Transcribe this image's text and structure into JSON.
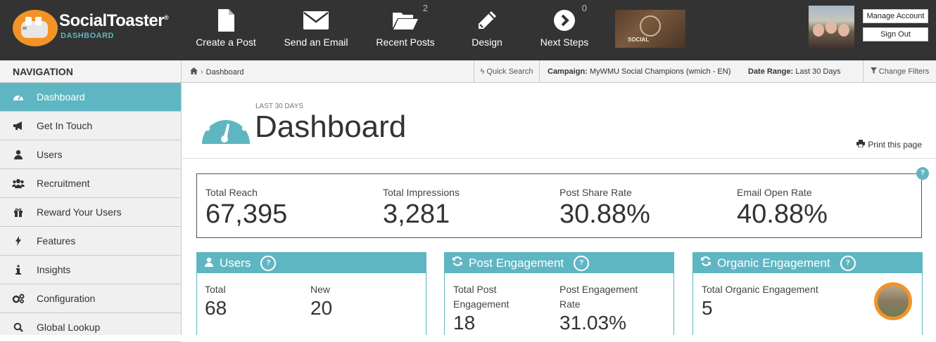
{
  "brand": {
    "name": "SocialToaster",
    "reg": "®",
    "sub": "DASHBOARD"
  },
  "topnav": [
    {
      "label": "Create a Post",
      "icon": "file-icon"
    },
    {
      "label": "Send an Email",
      "icon": "envelope-icon"
    },
    {
      "label": "Recent Posts",
      "icon": "folder-open-icon",
      "count": "2"
    },
    {
      "label": "Design",
      "icon": "pencil-icon"
    },
    {
      "label": "Next Steps",
      "icon": "chevron-circle-right-icon",
      "count": "0"
    }
  ],
  "campaign_badge": {
    "text": "SOCIAL"
  },
  "account": {
    "manage": "Manage Account",
    "signout": "Sign Out"
  },
  "sidebar": {
    "heading": "NAVIGATION",
    "items": [
      {
        "label": "Dashboard",
        "icon": "dashboard-icon",
        "active": true
      },
      {
        "label": "Get In Touch",
        "icon": "bullhorn-icon"
      },
      {
        "label": "Users",
        "icon": "user-icon"
      },
      {
        "label": "Recruitment",
        "icon": "users-icon"
      },
      {
        "label": "Reward Your Users",
        "icon": "gift-icon"
      },
      {
        "label": "Features",
        "icon": "bolt-icon"
      },
      {
        "label": "Insights",
        "icon": "info-icon"
      },
      {
        "label": "Configuration",
        "icon": "cogs-icon"
      },
      {
        "label": "Global Lookup",
        "icon": "search-icon"
      }
    ]
  },
  "breadcrumb": {
    "current": "Dashboard"
  },
  "filters": {
    "quick_search": "Quick Search",
    "campaign_label": "Campaign:",
    "campaign_value": "MyWMU Social Champions (wmich - EN)",
    "date_label": "Date Range:",
    "date_value": "Last 30 Days",
    "change": "Change Filters"
  },
  "header": {
    "period": "LAST 30 DAYS",
    "title": "Dashboard",
    "print": "Print this page"
  },
  "stats": [
    {
      "label": "Total Reach",
      "value": "67,395"
    },
    {
      "label": "Total Impressions",
      "value": "3,281"
    },
    {
      "label": "Post Share Rate",
      "value": "30.88%"
    },
    {
      "label": "Email Open Rate",
      "value": "40.88%"
    }
  ],
  "panels": {
    "users": {
      "title": "Users",
      "cells": [
        {
          "label": "Total",
          "value": "68"
        },
        {
          "label": "New",
          "value": "20"
        }
      ]
    },
    "post": {
      "title": "Post Engagement",
      "cells": [
        {
          "label1": "Total Post",
          "label2": "Engagement",
          "value": "18"
        },
        {
          "label1": "Post Engagement",
          "label2": "Rate",
          "value": "31.03%"
        }
      ]
    },
    "organic": {
      "title": "Organic Engagement",
      "cells": [
        {
          "label": "Total Organic Engagement",
          "value": "5"
        }
      ]
    }
  },
  "help": "?",
  "colors": {
    "topbar": "#333333",
    "accent": "#5fb6c3",
    "brand_orange": "#f39325"
  }
}
